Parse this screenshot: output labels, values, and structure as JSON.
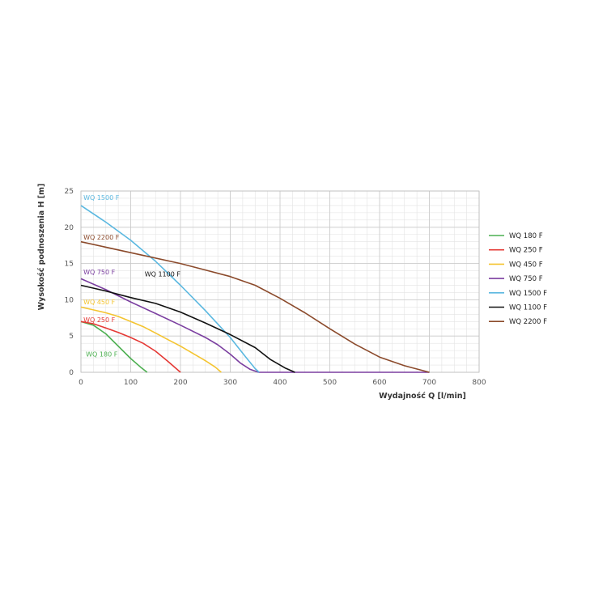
{
  "chart_data": {
    "type": "line",
    "xlabel": "Wydajność Q [l/min]",
    "ylabel": "Wysokość podnoszenia H [m]",
    "xlim": [
      0,
      800
    ],
    "ylim": [
      0,
      25
    ],
    "xticks": [
      0,
      100,
      200,
      300,
      400,
      500,
      600,
      700,
      800
    ],
    "yticks": [
      0,
      5,
      10,
      15,
      20,
      25
    ],
    "grid": true,
    "legend_position": "right",
    "series": [
      {
        "name": "WQ 180 F",
        "label": "WQ 180 F",
        "color": "#4caf50",
        "x": [
          0,
          25,
          50,
          75,
          100,
          120,
          133
        ],
        "y": [
          7,
          6.5,
          5.3,
          3.6,
          1.9,
          0.7,
          0
        ]
      },
      {
        "name": "WQ 250 F",
        "label": "WQ 250 F",
        "color": "#e53935",
        "x": [
          0,
          25,
          50,
          75,
          100,
          125,
          150,
          175,
          200
        ],
        "y": [
          7,
          6.7,
          6.1,
          5.5,
          4.8,
          4.0,
          2.9,
          1.5,
          0
        ]
      },
      {
        "name": "WQ 450 F",
        "label": "WQ 450 F",
        "color": "#f4c430",
        "x": [
          0,
          25,
          50,
          75,
          100,
          125,
          150,
          175,
          200,
          225,
          250,
          270,
          282
        ],
        "y": [
          9,
          8.6,
          8.2,
          7.7,
          7.0,
          6.3,
          5.4,
          4.5,
          3.6,
          2.6,
          1.6,
          0.7,
          0
        ]
      },
      {
        "name": "WQ 750 F",
        "label": "WQ 750 F",
        "color": "#7b3fa0",
        "x": [
          0,
          50,
          100,
          150,
          200,
          250,
          275,
          300,
          320,
          340,
          357,
          700
        ],
        "y": [
          12.9,
          11.4,
          9.7,
          8.1,
          6.5,
          4.8,
          3.8,
          2.5,
          1.3,
          0.4,
          0,
          0
        ]
      },
      {
        "name": "WQ 1500 F",
        "label": "WQ 1500 F",
        "color": "#5bb8e0",
        "x": [
          0,
          50,
          100,
          150,
          200,
          250,
          300,
          330,
          350,
          358
        ],
        "y": [
          23,
          20.7,
          18.2,
          15.3,
          12.0,
          8.5,
          4.8,
          2.2,
          0.5,
          0
        ]
      },
      {
        "name": "WQ 1100 F",
        "label": "WQ 1100 F",
        "color": "#111111",
        "x": [
          0,
          50,
          100,
          150,
          200,
          250,
          300,
          350,
          380,
          410,
          430
        ],
        "y": [
          12,
          11.2,
          10.3,
          9.5,
          8.3,
          6.8,
          5.2,
          3.4,
          1.8,
          0.6,
          0
        ]
      },
      {
        "name": "WQ 2200 F",
        "label": "WQ 2200 F",
        "color": "#8b4a2b",
        "x": [
          0,
          100,
          200,
          300,
          350,
          400,
          450,
          500,
          550,
          600,
          650,
          700
        ],
        "y": [
          18,
          16.5,
          15,
          13.2,
          12,
          10.2,
          8.2,
          6,
          3.9,
          2.1,
          0.9,
          0
        ]
      }
    ],
    "curve_labels": [
      {
        "text": "WQ 1500 F",
        "color": "#5bb8e0",
        "x": 5,
        "y": 23.8
      },
      {
        "text": "WQ 2200 F",
        "color": "#8b4a2b",
        "x": 5,
        "y": 18.3
      },
      {
        "text": "WQ 750 F",
        "color": "#7b3fa0",
        "x": 5,
        "y": 13.5
      },
      {
        "text": "WQ 1100 F",
        "color": "#111111",
        "x": 128,
        "y": 13.2
      },
      {
        "text": "WQ 450 F",
        "color": "#f4c430",
        "x": 5,
        "y": 9.4
      },
      {
        "text": "WQ 250 F",
        "color": "#e53935",
        "x": 5,
        "y": 6.9
      },
      {
        "text": "WQ 180 F",
        "color": "#4caf50",
        "x": 10,
        "y": 2.2
      }
    ]
  }
}
